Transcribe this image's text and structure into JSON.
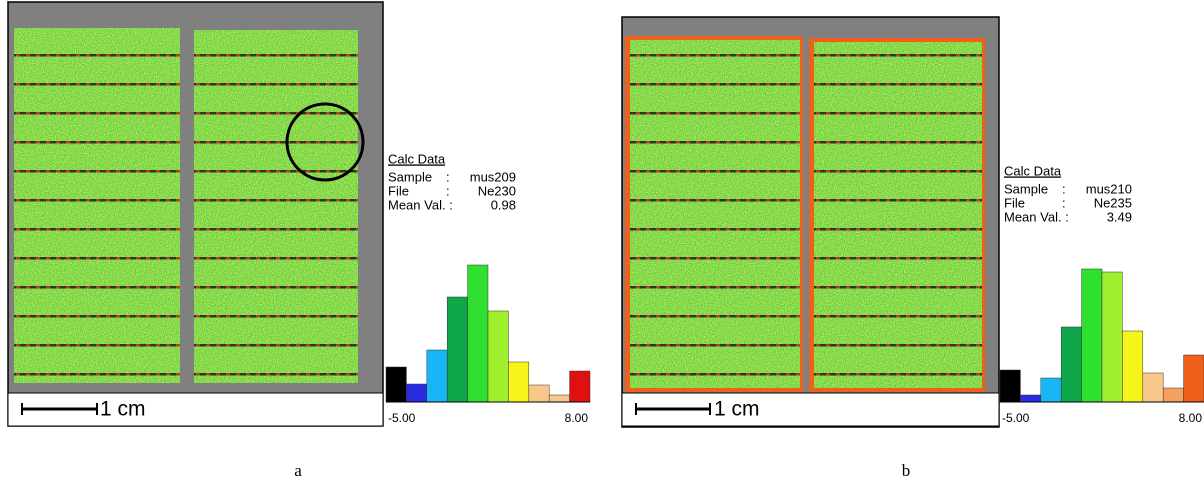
{
  "panels": [
    {
      "label": "a",
      "scale_label": "1 cm",
      "calc_title": "Calc Data",
      "rows": [
        [
          "Sample",
          ":",
          "mus209"
        ],
        [
          "File",
          ":",
          "Ne230"
        ],
        [
          "Mean Val. :",
          "",
          "0.98"
        ]
      ],
      "histogram": {
        "counts": [
          35,
          18,
          52,
          105,
          137,
          91,
          40,
          17,
          7,
          31
        ],
        "colors": [
          "#000000",
          "#2a2ae0",
          "#19b5f5",
          "#10a64a",
          "#30e030",
          "#a0f030",
          "#f5f51c",
          "#f8c88a",
          "#f8c88a",
          "#e01010"
        ],
        "min_label": "-5.00",
        "max_label": "8.00"
      }
    },
    {
      "label": "b",
      "scale_label": "1 cm",
      "calc_title": "Calc Data",
      "rows": [
        [
          "Sample",
          ":",
          "mus210"
        ],
        [
          "File",
          ":",
          "Ne235"
        ],
        [
          "Mean Val. :",
          "",
          "3.49"
        ]
      ],
      "histogram": {
        "counts": [
          32,
          7,
          24,
          75,
          133,
          130,
          71,
          29,
          14,
          47
        ],
        "colors": [
          "#000000",
          "#2a2ae0",
          "#19b5f5",
          "#10a64a",
          "#30e030",
          "#a0f030",
          "#f5f51c",
          "#f8c88a",
          "#f5a060",
          "#f06018"
        ],
        "min_label": "-5.00",
        "max_label": "8.00"
      }
    }
  ]
}
